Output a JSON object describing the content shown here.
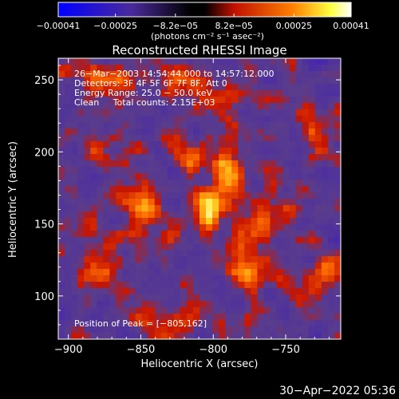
{
  "chart_data": {
    "type": "heatmap",
    "title": "Reconstructed RHESSI Image",
    "xlabel": "Heliocentric X (arcsec)",
    "ylabel": "Heliocentric Y (arcsec)",
    "xlim": [
      -907,
      -712
    ],
    "ylim": [
      70,
      265
    ],
    "x_ticks": [
      -900,
      -850,
      -800,
      -750
    ],
    "x_tick_labels": [
      "−900",
      "−850",
      "−800",
      "−750"
    ],
    "y_ticks": [
      100,
      150,
      200,
      250
    ],
    "y_tick_labels": [
      "100",
      "150",
      "200",
      "250"
    ],
    "colorbar": {
      "min": -0.00041,
      "max": 0.00041,
      "ticks": [
        -0.00041,
        -0.00025,
        -8.2e-05,
        8.2e-05,
        0.00025,
        0.00041
      ],
      "tick_labels": [
        "−0.00041",
        "−0.00025",
        "−8.2e−05",
        "8.2e−05",
        "0.00025",
        "0.00041"
      ],
      "unit_label": "(photons cm⁻² s⁻¹ asec⁻²)"
    },
    "annotations": [
      "26−Mar−2003 14:54:44.000 to 14:57:12.000",
      "Detectors: 3F 4F 5F 6F 7F 8F, Att 0",
      "Energy Range: 25.0 − 50.0 keV",
      "Clean     Total counts: 2.15E+03"
    ],
    "peak_label": "Position of Peak = [−805,162]",
    "peak": {
      "x": -805,
      "y": 162
    },
    "sources": [
      {
        "x": -803,
        "y": 162,
        "sx": 6,
        "sy": 8,
        "amp": 1.0
      },
      {
        "x": -790,
        "y": 185,
        "sx": 8,
        "sy": 12,
        "amp": 0.55
      },
      {
        "x": -848,
        "y": 160,
        "sx": 7,
        "sy": 10,
        "amp": 0.6
      },
      {
        "x": -870,
        "y": 250,
        "sx": 10,
        "sy": 6,
        "amp": 0.5
      },
      {
        "x": -820,
        "y": 250,
        "sx": 12,
        "sy": 6,
        "amp": 0.45
      },
      {
        "x": -880,
        "y": 200,
        "sx": 8,
        "sy": 8,
        "amp": 0.35
      },
      {
        "x": -775,
        "y": 120,
        "sx": 10,
        "sy": 12,
        "amp": 0.5
      },
      {
        "x": -765,
        "y": 150,
        "sx": 6,
        "sy": 8,
        "amp": 0.35
      },
      {
        "x": -880,
        "y": 115,
        "sx": 8,
        "sy": 8,
        "amp": 0.4
      },
      {
        "x": -840,
        "y": 85,
        "sx": 10,
        "sy": 6,
        "amp": 0.35
      },
      {
        "x": -725,
        "y": 110,
        "sx": 6,
        "sy": 10,
        "amp": 0.3
      },
      {
        "x": -730,
        "y": 210,
        "sx": 6,
        "sy": 8,
        "amp": 0.3
      },
      {
        "x": -820,
        "y": 200,
        "sx": 8,
        "sy": 8,
        "amp": 0.3
      }
    ],
    "colors": {
      "neg_max": "#0000ff",
      "neg_mid": "#4a2a9a",
      "zero": "#5a3a8a",
      "pos_low": "#d01000",
      "pos_mid": "#ff8000",
      "pos_high": "#ffff40",
      "pos_max": "#ffffff"
    }
  },
  "timestamp": "30−Apr−2022 05:36"
}
